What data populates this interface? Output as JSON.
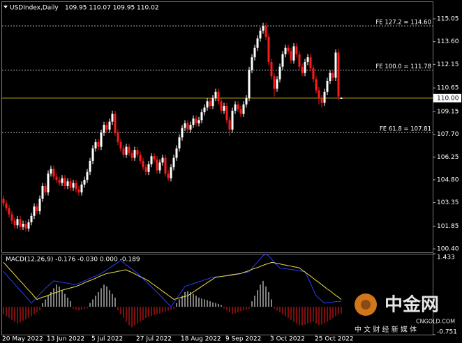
{
  "chart_data": [
    {
      "type": "candlestick",
      "title": "USDIndex,Daily",
      "subtitle": "109.95 110.07 109.95 110.02",
      "categories": [
        "20 May 2022",
        null,
        null,
        null,
        null,
        null,
        null,
        null,
        null,
        null,
        null,
        null,
        null,
        null,
        null,
        null,
        "13 Jun 2022",
        null,
        null,
        null,
        null,
        null,
        null,
        null,
        null,
        null,
        null,
        null,
        null,
        null,
        null,
        null,
        "5 Jul 2022",
        null,
        null,
        null,
        null,
        null,
        null,
        null,
        null,
        null,
        null,
        null,
        null,
        null,
        null,
        null,
        "27 Jul 2022",
        null,
        null,
        null,
        null,
        null,
        null,
        null,
        null,
        null,
        null,
        null,
        null,
        null,
        null,
        null,
        "18 Aug 2022",
        null,
        null,
        null,
        null,
        null,
        null,
        null,
        null,
        null,
        null,
        null,
        null,
        null,
        null,
        null,
        "9 Sep 2022",
        null,
        null,
        null,
        null,
        null,
        null,
        null,
        null,
        null,
        null,
        null,
        null,
        null,
        null,
        null,
        "3 Oct 2022",
        null,
        null,
        null,
        null,
        null,
        null,
        null,
        null,
        null,
        null,
        null,
        null,
        null,
        null,
        null,
        "25 Oct 2022",
        null,
        null,
        null,
        null,
        null,
        null,
        null,
        null,
        null
      ],
      "open": [
        103.6,
        103.3,
        103.0,
        102.6,
        102.2,
        101.9,
        102.3,
        101.8,
        102.0,
        101.7,
        102.1,
        102.5,
        103.1,
        102.8,
        103.6,
        104.4,
        104.0,
        105.2,
        105.5,
        105.0,
        104.8,
        104.6,
        104.9,
        104.4,
        104.7,
        104.3,
        104.6,
        104.2,
        104.0,
        104.5,
        104.8,
        105.3,
        106.0,
        106.8,
        107.2,
        106.9,
        107.8,
        108.3,
        108.0,
        108.5,
        109.0,
        107.8,
        107.2,
        106.8,
        106.4,
        106.9,
        106.5,
        106.2,
        106.7,
        106.4,
        106.0,
        105.6,
        105.3,
        105.8,
        106.3,
        106.1,
        105.4,
        105.9,
        106.2,
        105.2,
        104.9,
        105.6,
        106.2,
        106.8,
        107.5,
        108.1,
        108.4,
        108.0,
        108.3,
        108.7,
        108.4,
        108.6,
        109.1,
        109.4,
        109.8,
        109.5,
        110.0,
        110.4,
        109.8,
        109.2,
        109.5,
        108.6,
        108.0,
        109.2,
        109.6,
        109.3,
        109.0,
        109.6,
        110.0,
        111.8,
        112.6,
        113.2,
        113.8,
        114.3,
        114.6,
        113.9,
        112.3,
        111.4,
        110.6,
        111.2,
        112.0,
        112.8,
        113.2,
        113.0,
        112.4,
        113.3,
        112.8,
        112.0,
        111.6,
        112.3,
        112.6,
        111.9,
        111.2,
        110.5,
        110.0,
        109.7,
        110.4,
        111.1,
        111.6,
        111.3,
        112.9,
        109.95
      ],
      "high": [
        103.8,
        103.5,
        103.2,
        102.8,
        102.4,
        102.5,
        102.5,
        102.2,
        102.2,
        102.3,
        102.7,
        103.3,
        103.3,
        103.8,
        104.6,
        104.6,
        105.4,
        105.7,
        105.7,
        105.2,
        105.0,
        105.1,
        105.1,
        104.9,
        104.9,
        104.8,
        104.8,
        104.4,
        104.7,
        105.0,
        105.5,
        106.2,
        107.0,
        107.4,
        107.4,
        108.0,
        108.5,
        108.5,
        108.7,
        109.2,
        109.2,
        108.0,
        107.4,
        107.0,
        107.1,
        107.1,
        106.7,
        106.9,
        106.9,
        106.6,
        106.2,
        105.8,
        106.0,
        106.5,
        106.5,
        106.3,
        106.1,
        106.4,
        106.4,
        105.4,
        105.8,
        106.4,
        107.0,
        107.7,
        108.3,
        108.6,
        108.6,
        108.5,
        108.9,
        108.9,
        108.8,
        109.3,
        109.6,
        110.0,
        110.0,
        110.2,
        110.6,
        110.6,
        110.0,
        109.7,
        109.7,
        108.8,
        109.4,
        109.8,
        109.8,
        109.5,
        109.8,
        110.2,
        112.0,
        112.8,
        113.4,
        114.0,
        114.5,
        114.8,
        114.8,
        114.1,
        112.5,
        111.6,
        111.4,
        112.2,
        113.0,
        113.4,
        113.4,
        113.2,
        113.5,
        113.5,
        113.0,
        112.2,
        112.5,
        112.8,
        112.8,
        112.1,
        111.4,
        110.7,
        110.2,
        110.6,
        111.3,
        111.8,
        111.8,
        113.1,
        113.1,
        110.07
      ],
      "low": [
        103.1,
        102.8,
        102.4,
        102.0,
        101.7,
        101.7,
        101.6,
        101.6,
        101.5,
        101.5,
        101.9,
        102.3,
        102.6,
        102.6,
        103.4,
        103.8,
        103.8,
        105.0,
        104.8,
        104.6,
        104.4,
        104.4,
        104.2,
        104.2,
        104.1,
        104.1,
        104.0,
        103.8,
        103.8,
        104.3,
        104.6,
        105.1,
        105.8,
        106.6,
        106.7,
        106.7,
        107.6,
        107.8,
        107.8,
        108.3,
        107.6,
        107.0,
        106.6,
        106.2,
        106.2,
        106.3,
        106.0,
        106.0,
        106.2,
        105.8,
        105.4,
        105.1,
        105.1,
        105.6,
        105.9,
        105.2,
        105.2,
        105.7,
        105.0,
        104.7,
        104.7,
        105.4,
        106.0,
        106.6,
        107.3,
        107.9,
        107.8,
        107.8,
        108.1,
        108.2,
        108.2,
        108.4,
        108.9,
        109.2,
        109.3,
        109.3,
        109.8,
        109.6,
        109.0,
        109.0,
        108.4,
        107.6,
        107.8,
        109.0,
        109.1,
        108.8,
        108.8,
        109.4,
        109.8,
        111.6,
        112.4,
        113.0,
        113.6,
        114.1,
        113.7,
        112.1,
        111.2,
        110.1,
        110.4,
        111.0,
        111.8,
        112.6,
        112.8,
        112.2,
        112.2,
        112.6,
        111.8,
        111.4,
        111.4,
        112.1,
        111.7,
        111.0,
        110.3,
        109.6,
        109.4,
        109.5,
        110.2,
        110.9,
        111.1,
        111.1,
        109.9,
        109.95
      ],
      "close": [
        103.3,
        103.0,
        102.6,
        102.2,
        101.9,
        102.3,
        101.8,
        102.0,
        101.7,
        102.1,
        102.5,
        103.1,
        102.8,
        103.6,
        104.4,
        104.0,
        105.2,
        105.5,
        105.0,
        104.8,
        104.6,
        104.9,
        104.4,
        104.7,
        104.3,
        104.6,
        104.2,
        104.0,
        104.5,
        104.8,
        105.3,
        106.0,
        106.8,
        107.2,
        106.9,
        107.8,
        108.3,
        108.0,
        108.5,
        109.0,
        107.8,
        107.2,
        106.8,
        106.4,
        106.9,
        106.5,
        106.2,
        106.7,
        106.4,
        106.0,
        105.6,
        105.3,
        105.8,
        106.3,
        106.1,
        105.4,
        105.9,
        106.2,
        105.2,
        104.9,
        105.6,
        106.2,
        106.8,
        107.5,
        108.1,
        108.4,
        108.0,
        108.3,
        108.7,
        108.4,
        108.6,
        109.1,
        109.4,
        109.8,
        109.5,
        110.0,
        110.4,
        109.8,
        109.2,
        109.5,
        108.6,
        108.0,
        109.2,
        109.6,
        109.3,
        109.0,
        109.6,
        110.0,
        111.8,
        112.6,
        113.2,
        113.8,
        114.3,
        114.6,
        113.9,
        112.3,
        111.4,
        110.6,
        111.2,
        112.0,
        112.8,
        113.2,
        113.0,
        112.4,
        113.3,
        112.8,
        112.0,
        111.6,
        112.3,
        112.6,
        111.9,
        111.2,
        110.5,
        110.0,
        109.7,
        110.4,
        111.1,
        111.6,
        111.3,
        112.9,
        110.1,
        110.02
      ],
      "up_color": "#ffffff",
      "down_color": "#ff1a1a",
      "ylim": [
        100.18,
        116.16
      ],
      "yticks": [
        115.05,
        {
          "value": 113.6,
          "label": "113.60"
        },
        112.15,
        110.65,
        109.15,
        {
          "value": 107.7,
          "label": "107.70"
        },
        106.25,
        {
          "value": 104.8,
          "label": "104.80"
        },
        103.35,
        101.85,
        {
          "value": 100.4,
          "label": "100.40"
        }
      ],
      "price_line": {
        "value": 110.0,
        "label": "110.00",
        "color": "#e6c619"
      },
      "levels": [
        {
          "value": 114.6,
          "label": "FE 127.2 = 114.60"
        },
        {
          "value": 111.78,
          "label": "FE 100.0 = 111.78"
        },
        {
          "value": 107.81,
          "label": "FE 61.8 = 107.81"
        }
      ]
    },
    {
      "type": "macd",
      "title": "MACD(12,26,9) -0.176 -0.030 0.000 -0.189",
      "ylim": [
        -0.751,
        1.433
      ],
      "yticks": [
        1.433,
        -0.751
      ],
      "histogram": {
        "up_color": "#ffffff",
        "down_color": "#ff1a1a",
        "values": [
          -0.2,
          -0.25,
          -0.3,
          -0.35,
          -0.4,
          -0.45,
          -0.42,
          -0.38,
          -0.34,
          -0.3,
          -0.25,
          -0.2,
          -0.15,
          -0.1,
          0.1,
          0.2,
          0.3,
          0.4,
          0.5,
          0.6,
          0.55,
          0.45,
          0.35,
          0.25,
          0.15,
          -0.05,
          -0.08,
          -0.1,
          -0.08,
          -0.06,
          -0.04,
          0.1,
          0.2,
          0.3,
          0.4,
          0.5,
          0.6,
          0.55,
          0.45,
          0.35,
          0.25,
          -0.1,
          -0.2,
          -0.3,
          -0.4,
          -0.5,
          -0.55,
          -0.5,
          -0.45,
          -0.4,
          -0.35,
          -0.3,
          -0.28,
          -0.25,
          -0.22,
          -0.2,
          -0.18,
          -0.15,
          -0.12,
          -0.1,
          -0.08,
          -0.05,
          0.1,
          0.2,
          0.3,
          0.4,
          0.42,
          0.4,
          0.35,
          0.3,
          0.25,
          0.22,
          0.2,
          0.18,
          0.15,
          0.12,
          0.1,
          0.08,
          0.05,
          -0.05,
          -0.1,
          -0.15,
          -0.2,
          -0.18,
          -0.15,
          -0.12,
          -0.1,
          -0.08,
          -0.05,
          0.15,
          0.3,
          0.45,
          0.6,
          0.7,
          0.55,
          0.4,
          0.2,
          -0.05,
          -0.1,
          -0.15,
          -0.2,
          -0.25,
          -0.3,
          -0.35,
          -0.4,
          -0.45,
          -0.5,
          -0.5,
          -0.48,
          -0.45,
          -0.42,
          -0.4,
          -0.45,
          -0.5,
          -0.48,
          -0.44,
          -0.4,
          -0.35,
          -0.3,
          -0.25,
          -0.2,
          -0.18
        ]
      },
      "series": [
        {
          "color": "#2a3cff",
          "values": [
            0.95,
            0.87,
            0.78,
            0.7,
            0.61,
            0.53,
            0.44,
            0.36,
            0.27,
            0.19,
            0.1,
            0.18,
            0.26,
            0.34,
            0.42,
            0.5,
            0.57,
            0.63,
            0.7,
            0.69,
            0.67,
            0.66,
            0.65,
            0.64,
            0.62,
            0.61,
            0.6,
            0.63,
            0.67,
            0.7,
            0.73,
            0.77,
            0.8,
            0.83,
            0.87,
            0.9,
            0.95,
            1.0,
            1.05,
            1.1,
            1.15,
            1.2,
            1.25,
            1.19,
            1.13,
            1.08,
            1.02,
            0.96,
            0.9,
            0.83,
            0.76,
            0.69,
            0.61,
            0.54,
            0.47,
            0.4,
            0.32,
            0.24,
            0.16,
            0.08,
            0.0,
            0.11,
            0.22,
            0.33,
            0.44,
            0.55,
            0.58,
            0.6,
            0.63,
            0.65,
            0.68,
            0.7,
            0.73,
            0.75,
            0.78,
            0.8,
            0.81,
            0.81,
            0.82,
            0.83,
            0.84,
            0.84,
            0.85,
            0.87,
            0.88,
            0.9,
            0.92,
            0.93,
            0.95,
            1.04,
            1.13,
            1.21,
            1.3,
            1.38,
            1.42,
            1.37,
            1.29,
            1.21,
            1.13,
            1.05,
            1.04,
            1.03,
            1.02,
            1.01,
            1.0,
            0.99,
            0.97,
            0.96,
            0.95,
            0.79,
            0.63,
            0.46,
            0.3,
            0.23,
            0.17,
            0.1,
            0.11,
            0.12,
            0.13,
            0.14,
            0.14,
            0.15
          ]
        },
        {
          "color": "#f0e040",
          "values": [
            1.2,
            1.12,
            1.03,
            0.95,
            0.87,
            0.78,
            0.7,
            0.62,
            0.53,
            0.45,
            0.37,
            0.28,
            0.2,
            0.23,
            0.26,
            0.28,
            0.31,
            0.34,
            0.37,
            0.39,
            0.42,
            0.45,
            0.47,
            0.49,
            0.51,
            0.53,
            0.55,
            0.58,
            0.61,
            0.65,
            0.68,
            0.71,
            0.74,
            0.77,
            0.81,
            0.84,
            0.87,
            0.9,
            0.91,
            0.93,
            0.94,
            0.96,
            0.97,
            0.99,
            1.0,
            0.96,
            0.93,
            0.89,
            0.85,
            0.81,
            0.78,
            0.74,
            0.7,
            0.64,
            0.59,
            0.53,
            0.48,
            0.42,
            0.37,
            0.31,
            0.26,
            0.2,
            0.22,
            0.24,
            0.26,
            0.28,
            0.3,
            0.35,
            0.4,
            0.45,
            0.5,
            0.55,
            0.6,
            0.65,
            0.7,
            0.75,
            0.8,
            0.81,
            0.82,
            0.83,
            0.84,
            0.86,
            0.87,
            0.88,
            0.89,
            0.9,
            0.93,
            0.95,
            0.98,
            1.01,
            1.04,
            1.06,
            1.09,
            1.12,
            1.15,
            1.17,
            1.2,
            1.19,
            1.17,
            1.16,
            1.14,
            1.13,
            1.11,
            1.1,
            1.08,
            1.07,
            1.05,
            0.99,
            0.94,
            0.88,
            0.83,
            0.77,
            0.71,
            0.66,
            0.6,
            0.54,
            0.48,
            0.43,
            0.37,
            0.31,
            0.26,
            0.2
          ]
        }
      ]
    }
  ],
  "watermark": {
    "brand": "中金网",
    "site": "CNGOLD.COM",
    "tagline": "中 文 财 经 新 媒 体"
  }
}
